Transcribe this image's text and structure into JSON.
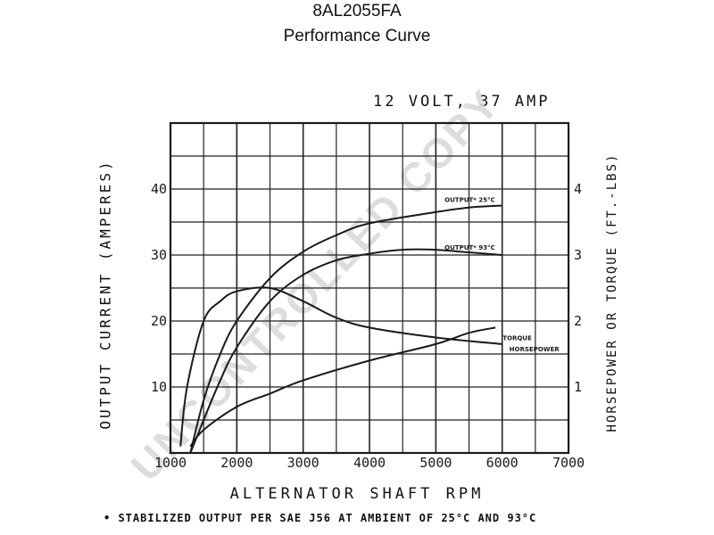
{
  "header": {
    "model": "8AL2055FA",
    "subtitle": "Performance Curve"
  },
  "footnote": "• STABILIZED OUTPUT PER SAE J56 AT AMBIENT OF 25°C AND 93°C",
  "watermark": "UNCONTROLLED COPY",
  "colors": {
    "ink": "#1a1a1a",
    "grid": "#222222",
    "watermark": "#d8d8d8"
  },
  "chart_data": {
    "type": "line",
    "title": "12 VOLT, 37 AMP",
    "xlabel": "ALTERNATOR SHAFT RPM",
    "ylabel": "OUTPUT CURRENT (AMPERES)",
    "y2label": "HORSEPOWER OR TORQUE (FT.-LBS)",
    "xlim": [
      1000,
      7000
    ],
    "ylim": [
      0,
      50
    ],
    "y2lim": [
      0,
      5
    ],
    "grid": true,
    "x_ticks": [
      1000,
      2000,
      3000,
      4000,
      5000,
      6000,
      7000
    ],
    "x_tick_labels": [
      "1000",
      "2000",
      "3000",
      "4000",
      "5000",
      "6000",
      "7000"
    ],
    "y_ticks": [
      10,
      20,
      30,
      40
    ],
    "y_tick_labels": [
      "10",
      "20",
      "30",
      "40"
    ],
    "y2_ticks": [
      1,
      2,
      3,
      4
    ],
    "y2_tick_labels": [
      "1",
      "2",
      "3",
      "4"
    ],
    "series": [
      {
        "name": "OUTPUT* 25°C",
        "axis": "left",
        "x": [
          1300,
          1500,
          1750,
          2000,
          2500,
          3000,
          3500,
          4000,
          5000,
          5500,
          6000
        ],
        "y": [
          0,
          8,
          15,
          20,
          26.5,
          30.5,
          33,
          34.8,
          36.5,
          37.2,
          37.5
        ]
      },
      {
        "name": "OUTPUT* 93°C",
        "axis": "left",
        "x": [
          1300,
          1500,
          1750,
          2000,
          2500,
          3000,
          3500,
          4000,
          4500,
          5000,
          5500,
          6000
        ],
        "y": [
          0,
          5,
          11,
          16,
          23,
          27,
          29.2,
          30.2,
          30.8,
          30.8,
          30.4,
          30
        ]
      },
      {
        "name": "HORSEPOWER",
        "axis": "right",
        "x": [
          1150,
          1250,
          1500,
          1750,
          2000,
          2500,
          3000,
          3500,
          4000,
          5000,
          6000
        ],
        "y": [
          0.1,
          1.0,
          2.0,
          2.3,
          2.45,
          2.5,
          2.3,
          2.05,
          1.9,
          1.75,
          1.65
        ]
      },
      {
        "name": "TORQUE",
        "axis": "right",
        "x": [
          1300,
          1500,
          2000,
          2500,
          3000,
          4000,
          5000,
          5500,
          5900
        ],
        "y": [
          0.1,
          0.35,
          0.7,
          0.9,
          1.1,
          1.4,
          1.65,
          1.82,
          1.9
        ]
      }
    ]
  }
}
